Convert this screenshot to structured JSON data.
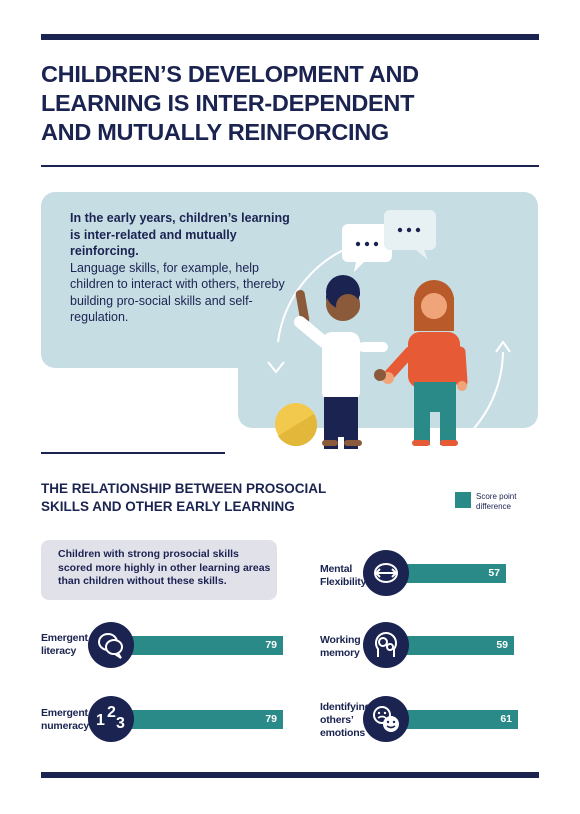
{
  "title_lines": [
    "CHILDREN’S DEVELOPMENT AND",
    "LEARNING IS INTER-DEPENDENT",
    "AND MUTUALLY REINFORCING"
  ],
  "intro": {
    "bold": "In the early years, children’s learning is inter-related and mutually reinforcing.",
    "body": "Language skills, for example, help children to interact with others, thereby building pro-social skills and self-regulation."
  },
  "subtitle_lines": [
    "THE RELATIONSHIP BETWEEN PROSOCIAL",
    "SKILLS AND OTHER EARLY LEARNING"
  ],
  "legend": {
    "label": "Score point difference",
    "color": "#2a8a87"
  },
  "callout": "Children with strong prosocial skills scored more highly in other learning areas than children without these skills.",
  "metrics": [
    {
      "label_lines": [
        "Emergent",
        "literacy"
      ],
      "value": "79",
      "icon": "speech-bubbles-icon"
    },
    {
      "label_lines": [
        "Emergent",
        "numeracy"
      ],
      "value": "79",
      "icon": "numbers-123-icon",
      "icon_glyphs": [
        "1",
        "2",
        "3"
      ]
    },
    {
      "label_lines": [
        "Mental",
        "Flexibility"
      ],
      "value": "57",
      "icon": "brain-arrows-icon"
    },
    {
      "label_lines": [
        "Working",
        "memory"
      ],
      "value": "59",
      "icon": "head-gears-icon"
    },
    {
      "label_lines": [
        "Identifying",
        "others’",
        "emotions"
      ],
      "value": "61",
      "icon": "emoji-faces-icon"
    }
  ],
  "colors": {
    "navy": "#1b2351",
    "teal": "#2a8a87",
    "light_blue": "#c7dde4",
    "callout_bg": "#e1e1ea"
  }
}
